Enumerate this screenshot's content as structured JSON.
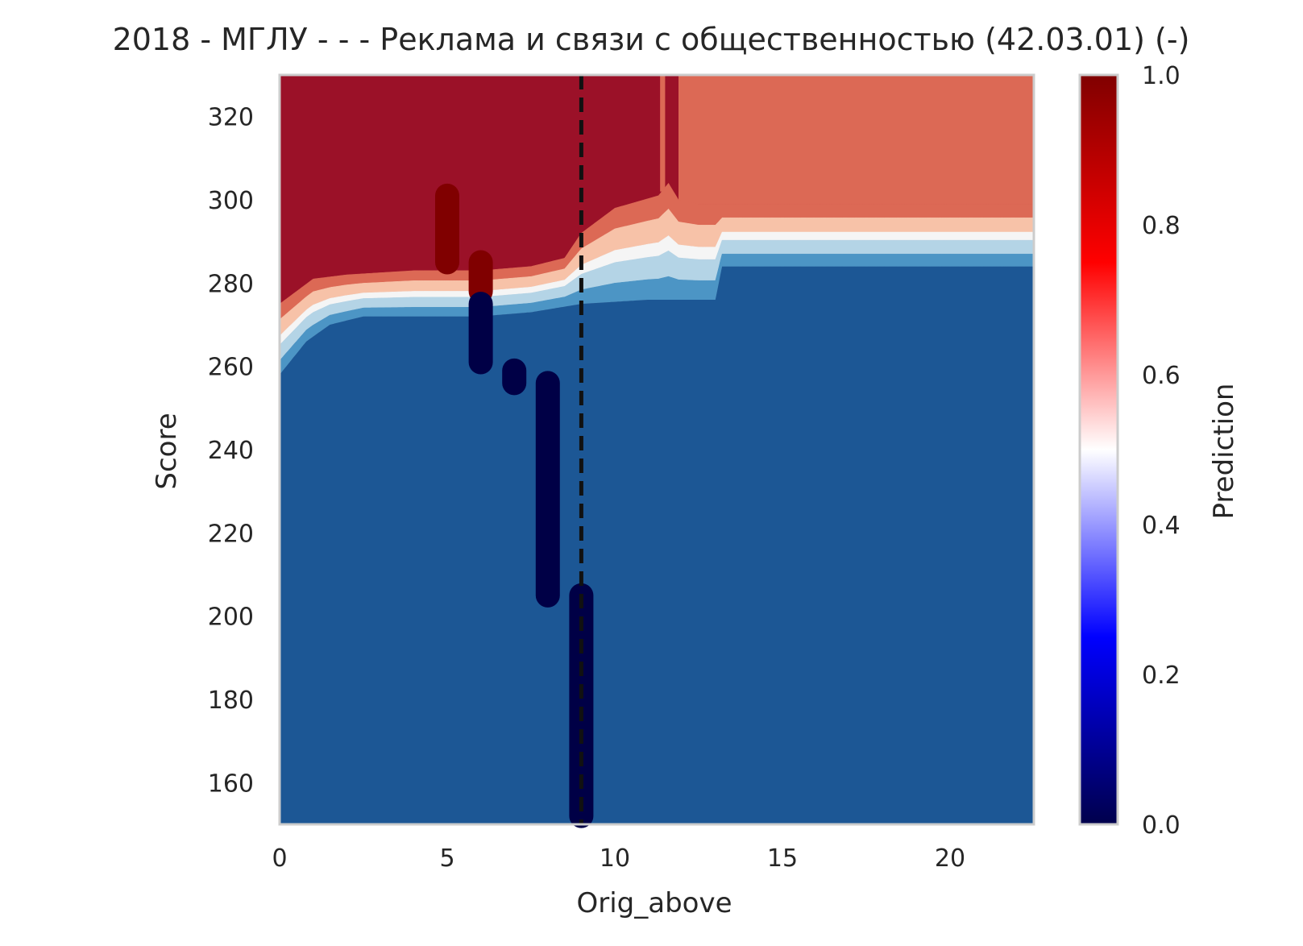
{
  "chart_data": {
    "type": "heatmap",
    "title": "2018 - МГЛУ - - - Реклама и связи с общественностью (42.03.01) (-)",
    "xlabel": "Orig_above",
    "ylabel": "Score",
    "xlim": [
      0,
      22.5
    ],
    "ylim": [
      150,
      330
    ],
    "xticks": [
      "0",
      "5",
      "10",
      "15",
      "20"
    ],
    "yticks": [
      "160",
      "180",
      "200",
      "220",
      "240",
      "260",
      "280",
      "300",
      "320"
    ],
    "grid": false,
    "colorbar": {
      "label": "Prediction",
      "range": [
        0,
        1
      ],
      "ticks": [
        "0.0",
        "0.2",
        "0.4",
        "0.6",
        "0.8",
        "1.0"
      ],
      "colormap": "seismic"
    },
    "threshold_line": {
      "x": 9,
      "style": "dashed",
      "color": "#111111"
    },
    "regions": {
      "colors": {
        "p_high": "#9b1128",
        "p_mid_high": "#dc6955",
        "p_light_red": "#f7c2a8",
        "p_white": "#f5f5f5",
        "p_light_blue": "#b4d4e6",
        "p_mid_blue": "#4c95c5",
        "p_low": "#1c5795"
      },
      "boundary_upper": [
        {
          "x": 0,
          "y": 275
        },
        {
          "x": 1,
          "y": 281
        },
        {
          "x": 2,
          "y": 282
        },
        {
          "x": 4,
          "y": 283
        },
        {
          "x": 6,
          "y": 283
        },
        {
          "x": 7.5,
          "y": 284
        },
        {
          "x": 8.5,
          "y": 286
        },
        {
          "x": 9,
          "y": 292
        },
        {
          "x": 10,
          "y": 298
        },
        {
          "x": 11.3,
          "y": 301
        },
        {
          "x": 11.6,
          "y": 304
        },
        {
          "x": 11.9,
          "y": 300
        },
        {
          "x": 12.5,
          "y": 299
        },
        {
          "x": 22.5,
          "y": 299
        }
      ],
      "boundary_lower": [
        {
          "x": 0,
          "y": 258
        },
        {
          "x": 0.8,
          "y": 266
        },
        {
          "x": 1.5,
          "y": 270
        },
        {
          "x": 2.5,
          "y": 272
        },
        {
          "x": 6,
          "y": 272
        },
        {
          "x": 7.5,
          "y": 273
        },
        {
          "x": 9,
          "y": 275
        },
        {
          "x": 11,
          "y": 276
        },
        {
          "x": 13,
          "y": 276
        },
        {
          "x": 13.2,
          "y": 284
        },
        {
          "x": 22.5,
          "y": 284
        }
      ]
    },
    "series": [
      {
        "label_class": 1,
        "x": 5,
        "y": [
          285,
          301
        ],
        "color": "#800000"
      },
      {
        "label_class": 1,
        "x": 6,
        "y": [
          278,
          285
        ],
        "color": "#800000"
      },
      {
        "label_class": 0,
        "x": 6,
        "y": [
          261,
          275
        ],
        "color": "#000046"
      },
      {
        "label_class": 0,
        "x": 7,
        "y": [
          256,
          259
        ],
        "color": "#000046"
      },
      {
        "label_class": 0,
        "x": 8,
        "y": [
          205,
          256
        ],
        "color": "#000046"
      },
      {
        "label_class": 0,
        "x": 9,
        "y": [
          152,
          205
        ],
        "color": "#000046"
      }
    ]
  }
}
